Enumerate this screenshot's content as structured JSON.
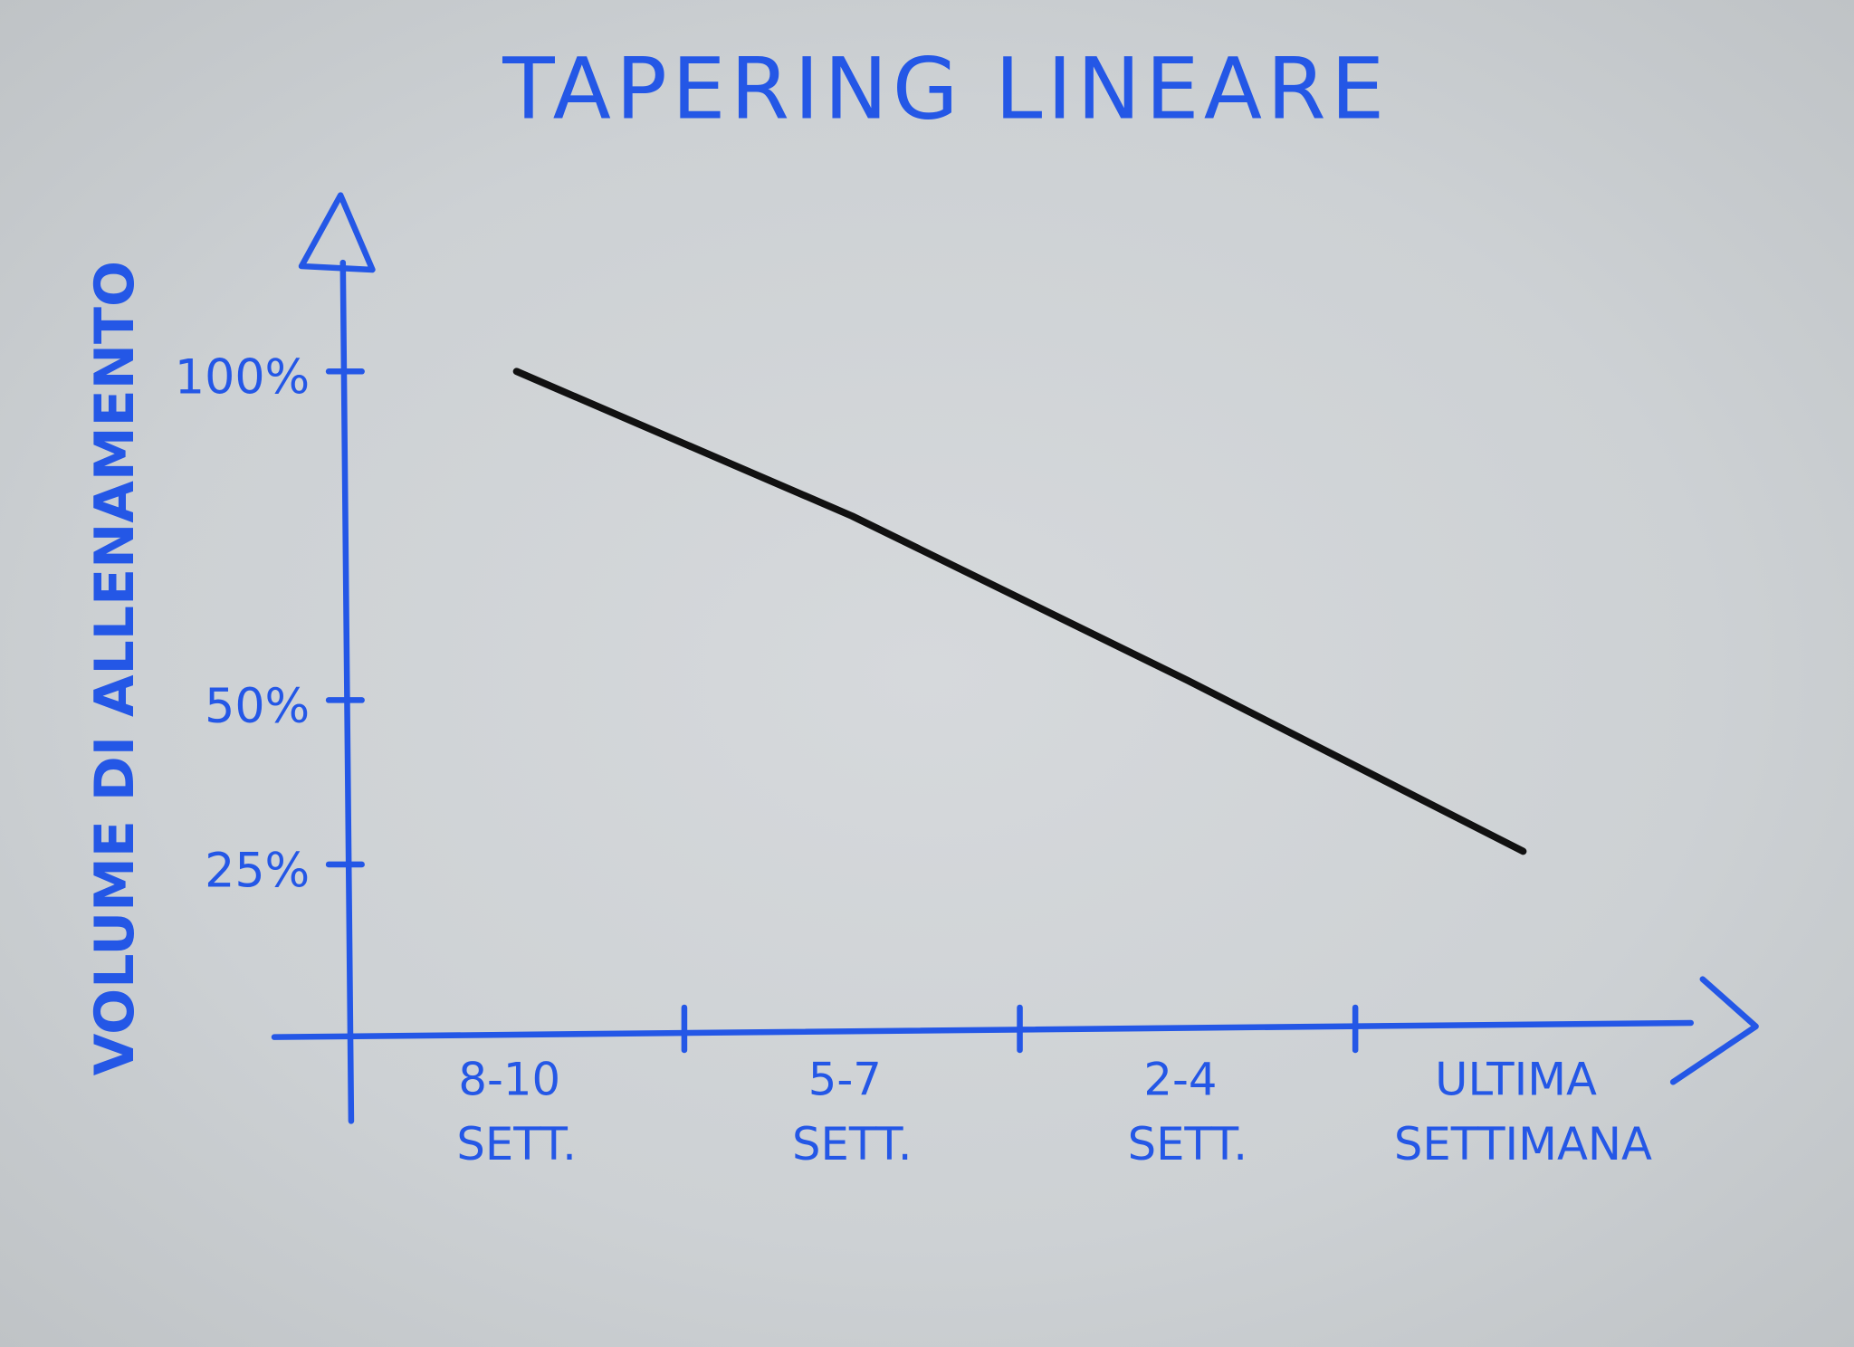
{
  "chart_data": {
    "type": "line",
    "title": "TAPERING LINEARE",
    "y_label": "VOLUME DI ALLENAMENTO",
    "categories": [
      "8-10 SETT.",
      "5-7 SETT.",
      "2-4 SETT.",
      "ULTIMA SETTIMANA"
    ],
    "values": [
      100,
      78,
      53,
      27
    ],
    "color": "#111111",
    "axis_color": "#2457e6",
    "ylim": [
      0,
      125
    ],
    "yticks": [
      {
        "value": 25,
        "label": "25%"
      },
      {
        "value": 50,
        "label": "50%"
      },
      {
        "value": 100,
        "label": "100%"
      }
    ],
    "grid": false
  }
}
